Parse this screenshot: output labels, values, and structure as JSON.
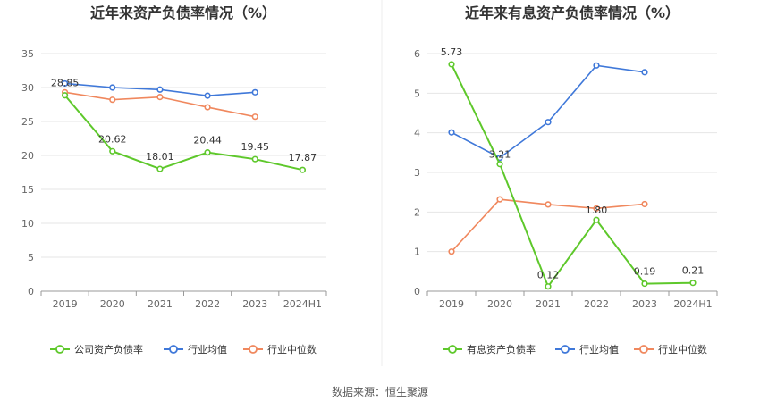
{
  "source_text": "数据来源：恒生聚源",
  "chart_data": [
    {
      "type": "line",
      "title": "近年来资产负债率情况（%）",
      "categories": [
        "2019",
        "2020",
        "2021",
        "2022",
        "2023",
        "2024H1"
      ],
      "ylim": [
        0,
        35
      ],
      "yticks": [
        "0",
        "5",
        "10",
        "15",
        "20",
        "25",
        "30",
        "35"
      ],
      "grid": true,
      "legend_position": "bottom",
      "series": [
        {
          "name": "公司资产负债率",
          "color": "#5ec82b",
          "values": [
            28.85,
            20.62,
            18.01,
            20.44,
            19.45,
            17.87
          ],
          "labels": [
            "28.85",
            "20.62",
            "18.01",
            "20.44",
            "19.45",
            "17.87"
          ]
        },
        {
          "name": "行业均值",
          "color": "#3f78d9",
          "values": [
            30.6,
            30.0,
            29.7,
            28.8,
            29.3,
            null
          ]
        },
        {
          "name": "行业中位数",
          "color": "#f0885e",
          "values": [
            29.3,
            28.2,
            28.6,
            27.1,
            25.7,
            null
          ]
        }
      ]
    },
    {
      "type": "line",
      "title": "近年来有息资产负债率情况（%）",
      "categories": [
        "2019",
        "2020",
        "2021",
        "2022",
        "2023",
        "2024H1"
      ],
      "ylim": [
        0,
        6
      ],
      "yticks": [
        "0",
        "1",
        "2",
        "3",
        "4",
        "5",
        "6"
      ],
      "grid": true,
      "legend_position": "bottom",
      "series": [
        {
          "name": "有息资产负债率",
          "color": "#5ec82b",
          "values": [
            5.73,
            3.21,
            0.12,
            1.8,
            0.19,
            0.21
          ],
          "labels": [
            "5.73",
            "3.21",
            "0.12",
            "1.80",
            "0.19",
            "0.21"
          ]
        },
        {
          "name": "行业均值",
          "color": "#3f78d9",
          "values": [
            4.01,
            3.37,
            4.27,
            5.7,
            5.53,
            null
          ]
        },
        {
          "name": "行业中位数",
          "color": "#f0885e",
          "values": [
            1.0,
            2.32,
            2.19,
            2.09,
            2.2,
            null
          ]
        }
      ]
    }
  ]
}
